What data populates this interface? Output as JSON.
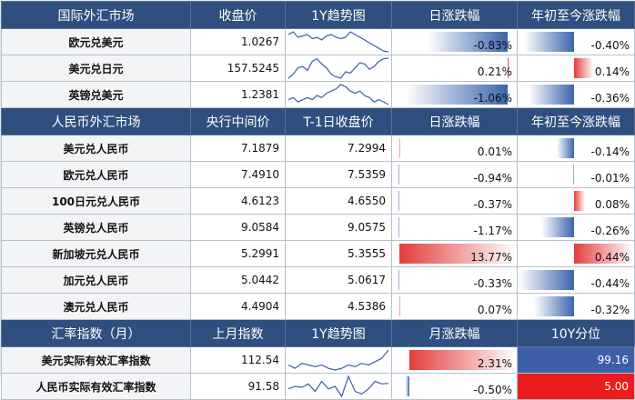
{
  "section1": {
    "headers": [
      "国际外汇市场",
      "收盘价",
      "1Y趋势图",
      "日涨跌幅",
      "年初至今涨跌幅"
    ],
    "rows": [
      {
        "name": "欧元兑美元",
        "close": "1.0267",
        "daily": "-0.83%",
        "daily_v": -0.83,
        "ytd": "-0.40%",
        "ytd_v": -0.4,
        "spark": [
          1.09,
          1.1,
          1.08,
          1.085,
          1.09,
          1.075,
          1.08,
          1.07,
          1.085,
          1.09,
          1.08,
          1.075,
          1.08,
          1.1,
          1.09,
          1.08,
          1.07,
          1.06,
          1.05,
          1.04,
          1.03,
          1.027
        ]
      },
      {
        "name": "美元兑日元",
        "close": "157.5245",
        "daily": "0.21%",
        "daily_v": 0.21,
        "ytd": "0.14%",
        "ytd_v": 0.14,
        "spark": [
          142,
          145,
          150,
          151,
          148,
          155,
          157,
          153,
          150,
          145,
          143,
          142,
          147,
          146,
          150,
          154,
          153,
          149,
          151,
          155,
          157,
          157.5
        ]
      },
      {
        "name": "英镑兑美元",
        "close": "1.2381",
        "daily": "-1.06%",
        "daily_v": -1.06,
        "ytd": "-0.36%",
        "ytd_v": -0.36,
        "spark": [
          1.26,
          1.27,
          1.25,
          1.26,
          1.27,
          1.26,
          1.28,
          1.27,
          1.29,
          1.3,
          1.31,
          1.33,
          1.32,
          1.3,
          1.29,
          1.3,
          1.28,
          1.27,
          1.25,
          1.26,
          1.25,
          1.238
        ]
      }
    ]
  },
  "section2": {
    "headers": [
      "人民币外汇市场",
      "央行中间价",
      "T-1日收盘价",
      "日涨跌幅",
      "年初至今涨跌幅"
    ],
    "rows": [
      {
        "name": "美元兑人民币",
        "mid": "7.1879",
        "prev": "7.2994",
        "daily": "0.01%",
        "daily_v": 0.01,
        "ytd": "-0.14%",
        "ytd_v": -0.14
      },
      {
        "name": "欧元兑人民币",
        "mid": "7.4910",
        "prev": "7.5359",
        "daily": "-0.94%",
        "daily_v": -0.94,
        "ytd": "-0.01%",
        "ytd_v": -0.01
      },
      {
        "name": "100日元兑人民币",
        "mid": "4.6123",
        "prev": "4.6550",
        "daily": "-0.37%",
        "daily_v": -0.37,
        "ytd": "0.08%",
        "ytd_v": 0.08
      },
      {
        "name": "英镑兑人民币",
        "mid": "9.0584",
        "prev": "9.0575",
        "daily": "-1.17%",
        "daily_v": -1.17,
        "ytd": "-0.26%",
        "ytd_v": -0.26
      },
      {
        "name": "新加坡元兑人民币",
        "mid": "5.2991",
        "prev": "5.3555",
        "daily": "13.77%",
        "daily_v": 13.77,
        "ytd": "0.44%",
        "ytd_v": 0.44
      },
      {
        "name": "加元兑人民币",
        "mid": "5.0442",
        "prev": "5.0617",
        "daily": "-0.33%",
        "daily_v": -0.33,
        "ytd": "-0.44%",
        "ytd_v": -0.44
      },
      {
        "name": "澳元兑人民币",
        "mid": "4.4904",
        "prev": "4.5386",
        "daily": "0.07%",
        "daily_v": 0.07,
        "ytd": "-0.32%",
        "ytd_v": -0.32
      }
    ]
  },
  "section3": {
    "headers": [
      "汇率指数（月）",
      "上月指数",
      "1Y趋势图",
      "月涨跌幅",
      "10Y分位"
    ],
    "rows": [
      {
        "name": "美元实际有效汇率指数",
        "last": "112.54",
        "monthly": "2.31%",
        "monthly_v": 2.31,
        "pct": "99.16",
        "spark": [
          108,
          107,
          108.5,
          108,
          107.5,
          108,
          107,
          106.5,
          107,
          108,
          107.5,
          108.5,
          108,
          109,
          110,
          112.5
        ]
      },
      {
        "name": "人民币实际有效汇率指数",
        "last": "91.58",
        "monthly": "-0.50%",
        "monthly_v": -0.5,
        "pct": "5.00",
        "spark": [
          90.5,
          91,
          90.8,
          91.5,
          90,
          92,
          90.5,
          91,
          89,
          93,
          90,
          89.5,
          90.5,
          92,
          91.5,
          91.6
        ]
      }
    ]
  },
  "colors": {
    "header": "#2f4f7f",
    "neg_bar": "#3c64ad",
    "pos_bar": "#e43c3c",
    "spark": "#3b5ea6"
  }
}
